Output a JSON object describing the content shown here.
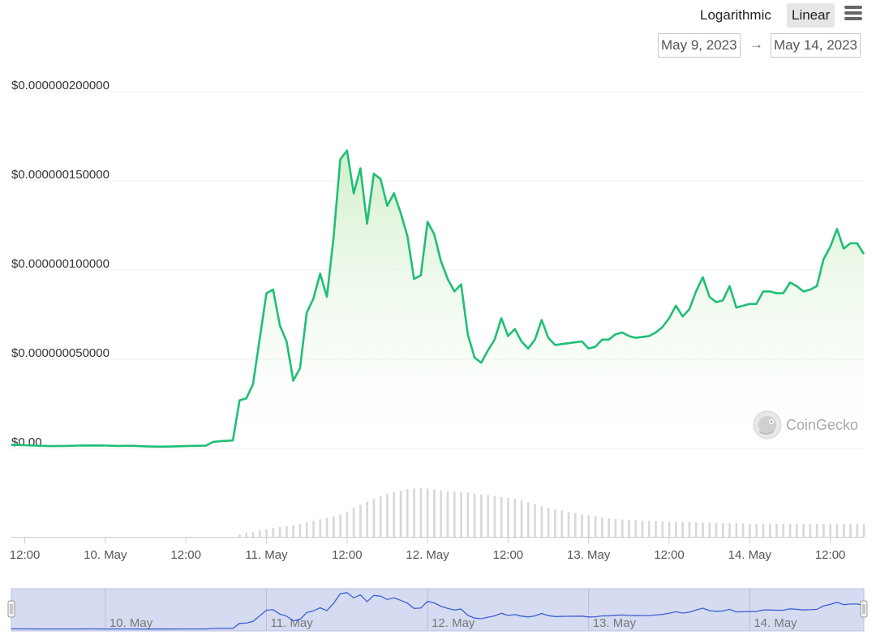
{
  "toolbar": {
    "scale_log": "Logarithmic",
    "scale_linear": "Linear",
    "active_scale": "Linear",
    "menu_icon": "hamburger-menu-icon"
  },
  "date_range": {
    "from": "May 9, 2023",
    "arrow": "→",
    "to": "May 14, 2023"
  },
  "watermark": {
    "text": "CoinGecko",
    "logo_icon": "coingecko-gecko-icon"
  },
  "colors": {
    "line": "#1fbf75",
    "fill_top": "#cdeec6",
    "volume": "#d8d8d8",
    "navigator_fill": "#d5dbf1",
    "navigator_line": "#3d5fd1",
    "active_button": "#e6e6e6"
  },
  "chart_data": {
    "type": "line",
    "title": "",
    "xlabel": "",
    "ylabel": "",
    "x_start": "2023-05-09T10:00",
    "x_end": "2023-05-14T17:00",
    "y_ticks": [
      "$0.00",
      "$0.000000050000",
      "$0.000000100000",
      "$0.000000150000",
      "$0.000000200000"
    ],
    "y_tick_values": [
      0,
      5e-08,
      1e-07,
      1.5e-07,
      2e-07
    ],
    "ylim": [
      0,
      2e-07
    ],
    "x_ticks": [
      "12:00",
      "10. May",
      "12:00",
      "11. May",
      "12:00",
      "12. May",
      "12:00",
      "13. May",
      "12:00",
      "14. May",
      "12:00"
    ],
    "x_tick_times": [
      "2023-05-09T12:00",
      "2023-05-10T00:00",
      "2023-05-10T12:00",
      "2023-05-11T00:00",
      "2023-05-11T12:00",
      "2023-05-12T00:00",
      "2023-05-12T12:00",
      "2023-05-13T00:00",
      "2023-05-13T12:00",
      "2023-05-14T00:00",
      "2023-05-14T12:00"
    ],
    "navigator_labels": [
      "10. May",
      "11. May",
      "12. May",
      "13. May",
      "14. May"
    ],
    "navigator_label_times": [
      "2023-05-10T00:00",
      "2023-05-11T00:00",
      "2023-05-12T00:00",
      "2023-05-13T00:00",
      "2023-05-14T00:00"
    ],
    "grid": true,
    "series": [
      {
        "values": [
          [
            "2023-05-09T10:00",
            2e-09
          ],
          [
            "2023-05-09T12:00",
            1.8e-09
          ],
          [
            "2023-05-09T14:00",
            1.5e-09
          ],
          [
            "2023-05-09T16:00",
            1.3e-09
          ],
          [
            "2023-05-09T18:00",
            1.4e-09
          ],
          [
            "2023-05-09T20:00",
            1.6e-09
          ],
          [
            "2023-05-09T22:00",
            1.7e-09
          ],
          [
            "2023-05-10T00:00",
            1.6e-09
          ],
          [
            "2023-05-10T02:00",
            1.4e-09
          ],
          [
            "2023-05-10T04:00",
            1.5e-09
          ],
          [
            "2023-05-10T06:00",
            1.2e-09
          ],
          [
            "2023-05-10T08:00",
            1e-09
          ],
          [
            "2023-05-10T10:00",
            1.1e-09
          ],
          [
            "2023-05-10T12:00",
            1.3e-09
          ],
          [
            "2023-05-10T14:00",
            1.5e-09
          ],
          [
            "2023-05-10T15:00",
            1.6e-09
          ],
          [
            "2023-05-10T16:00",
            3.6e-09
          ],
          [
            "2023-05-10T17:00",
            4e-09
          ],
          [
            "2023-05-10T19:00",
            4.5e-09
          ],
          [
            "2023-05-10T20:00",
            2.7e-08
          ],
          [
            "2023-05-10T21:00",
            2.8e-08
          ],
          [
            "2023-05-10T22:00",
            3.6e-08
          ],
          [
            "2023-05-11T00:00",
            8.7e-08
          ],
          [
            "2023-05-11T01:00",
            8.9e-08
          ],
          [
            "2023-05-11T02:00",
            6.9e-08
          ],
          [
            "2023-05-11T03:00",
            6e-08
          ],
          [
            "2023-05-11T04:00",
            3.8e-08
          ],
          [
            "2023-05-11T05:00",
            4.5e-08
          ],
          [
            "2023-05-11T06:00",
            7.6e-08
          ],
          [
            "2023-05-11T07:00",
            8.4e-08
          ],
          [
            "2023-05-11T08:00",
            9.8e-08
          ],
          [
            "2023-05-11T09:00",
            8.5e-08
          ],
          [
            "2023-05-11T10:00",
            1.18e-07
          ],
          [
            "2023-05-11T11:00",
            1.62e-07
          ],
          [
            "2023-05-11T12:00",
            1.67e-07
          ],
          [
            "2023-05-11T13:00",
            1.43e-07
          ],
          [
            "2023-05-11T14:00",
            1.57e-07
          ],
          [
            "2023-05-11T15:00",
            1.26e-07
          ],
          [
            "2023-05-11T16:00",
            1.54e-07
          ],
          [
            "2023-05-11T17:00",
            1.51e-07
          ],
          [
            "2023-05-11T18:00",
            1.36e-07
          ],
          [
            "2023-05-11T19:00",
            1.43e-07
          ],
          [
            "2023-05-11T20:00",
            1.32e-07
          ],
          [
            "2023-05-11T21:00",
            1.19e-07
          ],
          [
            "2023-05-11T22:00",
            9.5e-08
          ],
          [
            "2023-05-11T23:00",
            9.7e-08
          ],
          [
            "2023-05-12T00:00",
            1.27e-07
          ],
          [
            "2023-05-12T01:00",
            1.2e-07
          ],
          [
            "2023-05-12T02:00",
            1.05e-07
          ],
          [
            "2023-05-12T03:00",
            9.5e-08
          ],
          [
            "2023-05-12T04:00",
            8.8e-08
          ],
          [
            "2023-05-12T05:00",
            9.2e-08
          ],
          [
            "2023-05-12T06:00",
            6.4e-08
          ],
          [
            "2023-05-12T07:00",
            5.1e-08
          ],
          [
            "2023-05-12T08:00",
            4.8e-08
          ],
          [
            "2023-05-12T09:00",
            5.5e-08
          ],
          [
            "2023-05-12T10:00",
            6.1e-08
          ],
          [
            "2023-05-12T11:00",
            7.3e-08
          ],
          [
            "2023-05-12T12:00",
            6.3e-08
          ],
          [
            "2023-05-12T13:00",
            6.7e-08
          ],
          [
            "2023-05-12T14:00",
            6e-08
          ],
          [
            "2023-05-12T15:00",
            5.6e-08
          ],
          [
            "2023-05-12T16:00",
            6.1e-08
          ],
          [
            "2023-05-12T17:00",
            7.2e-08
          ],
          [
            "2023-05-12T18:00",
            6.2e-08
          ],
          [
            "2023-05-12T19:00",
            5.8e-08
          ],
          [
            "2023-05-12T21:00",
            5.9e-08
          ],
          [
            "2023-05-12T23:00",
            6e-08
          ],
          [
            "2023-05-13T00:00",
            5.6e-08
          ],
          [
            "2023-05-13T01:00",
            5.7e-08
          ],
          [
            "2023-05-13T02:00",
            6.1e-08
          ],
          [
            "2023-05-13T03:00",
            6.1e-08
          ],
          [
            "2023-05-13T04:00",
            6.4e-08
          ],
          [
            "2023-05-13T05:00",
            6.5e-08
          ],
          [
            "2023-05-13T06:00",
            6.3e-08
          ],
          [
            "2023-05-13T07:00",
            6.2e-08
          ],
          [
            "2023-05-13T09:00",
            6.3e-08
          ],
          [
            "2023-05-13T10:00",
            6.5e-08
          ],
          [
            "2023-05-13T11:00",
            6.8e-08
          ],
          [
            "2023-05-13T12:00",
            7.3e-08
          ],
          [
            "2023-05-13T13:00",
            8e-08
          ],
          [
            "2023-05-13T14:00",
            7.4e-08
          ],
          [
            "2023-05-13T15:00",
            7.8e-08
          ],
          [
            "2023-05-13T16:00",
            8.8e-08
          ],
          [
            "2023-05-13T17:00",
            9.6e-08
          ],
          [
            "2023-05-13T18:00",
            8.5e-08
          ],
          [
            "2023-05-13T19:00",
            8.2e-08
          ],
          [
            "2023-05-13T20:00",
            8.3e-08
          ],
          [
            "2023-05-13T21:00",
            9.1e-08
          ],
          [
            "2023-05-13T22:00",
            7.9e-08
          ],
          [
            "2023-05-14T00:00",
            8.1e-08
          ],
          [
            "2023-05-14T01:00",
            8.1e-08
          ],
          [
            "2023-05-14T02:00",
            8.8e-08
          ],
          [
            "2023-05-14T03:00",
            8.8e-08
          ],
          [
            "2023-05-14T04:00",
            8.7e-08
          ],
          [
            "2023-05-14T05:00",
            8.7e-08
          ],
          [
            "2023-05-14T06:00",
            9.3e-08
          ],
          [
            "2023-05-14T07:00",
            9.1e-08
          ],
          [
            "2023-05-14T08:00",
            8.8e-08
          ],
          [
            "2023-05-14T09:00",
            8.9e-08
          ],
          [
            "2023-05-14T10:00",
            9.1e-08
          ],
          [
            "2023-05-14T11:00",
            1.06e-07
          ],
          [
            "2023-05-14T12:00",
            1.13e-07
          ],
          [
            "2023-05-14T13:00",
            1.23e-07
          ],
          [
            "2023-05-14T14:00",
            1.12e-07
          ],
          [
            "2023-05-14T15:00",
            1.15e-07
          ],
          [
            "2023-05-14T16:00",
            1.15e-07
          ],
          [
            "2023-05-14T17:00",
            1.09e-07
          ]
        ]
      }
    ],
    "volume": {
      "unit": "relative (unlabeled axis, 0-1)",
      "start": "2023-05-10T20:00",
      "interval_hours": 1,
      "values": [
        0.05,
        0.08,
        0.1,
        0.13,
        0.16,
        0.18,
        0.2,
        0.22,
        0.24,
        0.26,
        0.3,
        0.33,
        0.36,
        0.39,
        0.42,
        0.46,
        0.52,
        0.6,
        0.66,
        0.72,
        0.78,
        0.84,
        0.88,
        0.92,
        0.95,
        0.98,
        0.99,
        1.0,
        0.99,
        0.97,
        0.95,
        0.93,
        0.93,
        0.92,
        0.91,
        0.89,
        0.87,
        0.86,
        0.84,
        0.82,
        0.8,
        0.78,
        0.75,
        0.71,
        0.67,
        0.63,
        0.6,
        0.57,
        0.54,
        0.51,
        0.49,
        0.46,
        0.44,
        0.42,
        0.4,
        0.38,
        0.37,
        0.36,
        0.35,
        0.34,
        0.33,
        0.33,
        0.32,
        0.32,
        0.31,
        0.31,
        0.3,
        0.3,
        0.3,
        0.29,
        0.29,
        0.29,
        0.28,
        0.28,
        0.28,
        0.28,
        0.27,
        0.27,
        0.27,
        0.27,
        0.27,
        0.27,
        0.27,
        0.27,
        0.27,
        0.27,
        0.27,
        0.27,
        0.27,
        0.27,
        0.27,
        0.27,
        0.27,
        0.27,
        0.27,
        0.27,
        0.27,
        0.27,
        0.27,
        0.27,
        0.27,
        0.27,
        0.27,
        0.27,
        0.27,
        0.27
      ]
    }
  }
}
